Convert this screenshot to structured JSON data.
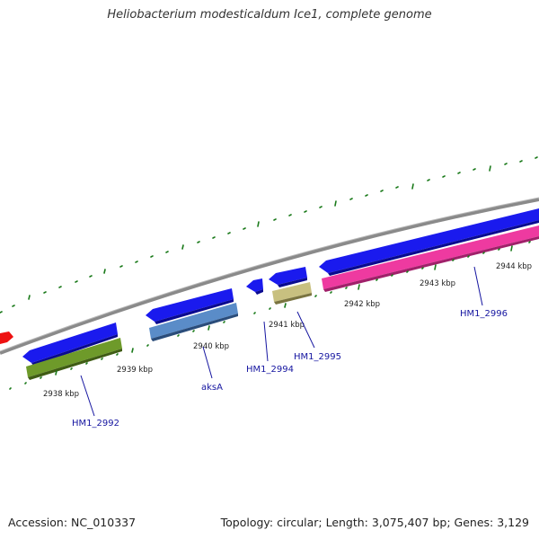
{
  "title": "Heliobacterium modesticaldum Ice1, complete genome",
  "accession": "Accession: NC_010337",
  "summary": "Topology: circular; Length: 3,075,407 bp; Genes: 3,129",
  "kbp_labels": [
    "2938 kbp",
    "2939 kbp",
    "2940 kbp",
    "2941 kbp",
    "2942 kbp",
    "2943 kbp",
    "2944 kbp"
  ],
  "gene_labels": [
    "HM1_2992",
    "aksA",
    "HM1_2994",
    "HM1_2995",
    "HM1_2996"
  ],
  "colors": {
    "backbone": "#8a8a8a",
    "cds_blue": "#1a1aee",
    "hm1_2992": "#6e9a2a",
    "aksA": "#5a8cc8",
    "hm1_2995": "#c8c080",
    "hm1_2996": "#ee3aa0",
    "red_feature": "#ee1111",
    "tick_green": "#1a7a1a",
    "label_blue": "#1515a0"
  }
}
